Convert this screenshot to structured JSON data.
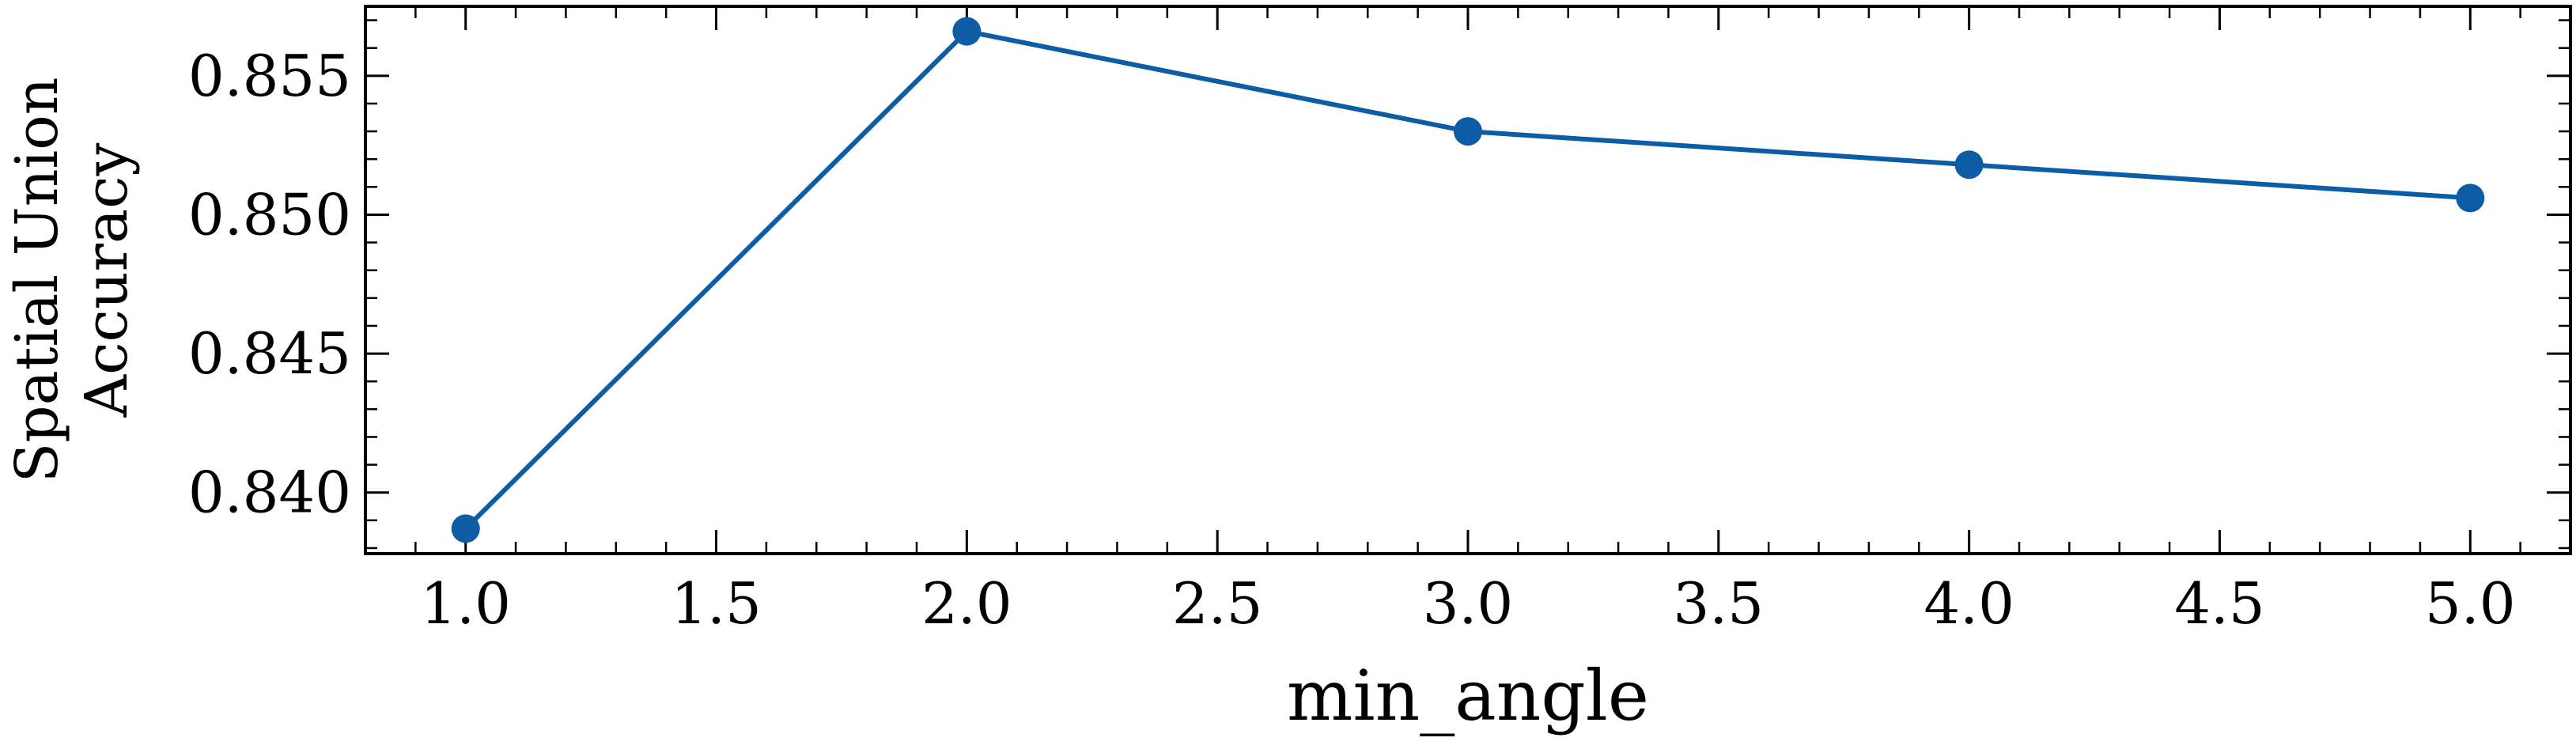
{
  "chart_data": {
    "type": "line",
    "title": "",
    "xlabel": "min_angle",
    "ylabel_lines": [
      "Spatial Union",
      "Accuracy"
    ],
    "xlim": [
      0.8,
      5.2
    ],
    "ylim": [
      0.8378,
      0.8575
    ],
    "x_ticks": [
      1.0,
      1.5,
      2.0,
      2.5,
      3.0,
      3.5,
      4.0,
      4.5,
      5.0
    ],
    "x_tick_labels": [
      "1.0",
      "1.5",
      "2.0",
      "2.5",
      "3.0",
      "3.5",
      "4.0",
      "4.5",
      "5.0"
    ],
    "y_ticks": [
      0.84,
      0.845,
      0.85,
      0.855
    ],
    "y_tick_labels": [
      "0.840",
      "0.845",
      "0.850",
      "0.855"
    ],
    "grid": false,
    "series": [
      {
        "color": "#0c5da5",
        "x": [
          1.0,
          2.0,
          3.0,
          4.0,
          5.0
        ],
        "y": [
          0.8387,
          0.8566,
          0.853,
          0.8518,
          0.8506
        ]
      }
    ]
  }
}
